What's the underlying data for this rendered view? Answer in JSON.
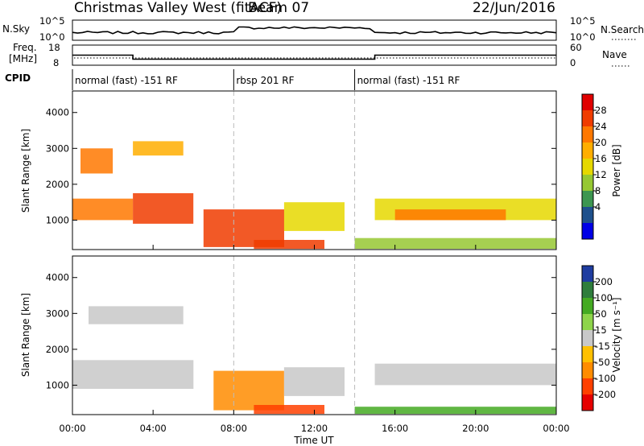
{
  "header": {
    "title": "Christmas Valley West (fitACF)",
    "beam": "Beam 07",
    "date": "22/Jun/2016"
  },
  "noise_panel": {
    "left_label": "N.Sky",
    "right_label": "N.Search",
    "left_ticks": [
      "10^5",
      "10^0"
    ],
    "right_ticks": [
      "10^5",
      "10^0"
    ]
  },
  "freq_panel": {
    "left_label_1": "Freq.",
    "left_label_2": "[MHz]",
    "right_label": "Nave",
    "left_ticks": [
      "18",
      "8"
    ],
    "right_ticks": [
      "60",
      "0"
    ]
  },
  "cpid": {
    "label": "CPID",
    "segments": [
      {
        "text": "normal (fast) -151 RF",
        "start_hour": 0,
        "end_hour": 8.0
      },
      {
        "text": "rbsp 201 RF",
        "start_hour": 8.0,
        "end_hour": 14.0
      },
      {
        "text": "normal (fast) -151 RF",
        "start_hour": 14.0,
        "end_hour": 24.0
      }
    ]
  },
  "axes": {
    "ylabel": "Slant Range [km]",
    "xlabel": "Time UT",
    "y_ticks": [
      "1000",
      "2000",
      "3000",
      "4000"
    ],
    "x_ticks": [
      "00:00",
      "04:00",
      "08:00",
      "12:00",
      "16:00",
      "20:00",
      "00:00"
    ]
  },
  "power_bar": {
    "label": "Power [dB]",
    "ticks": [
      "28",
      "24",
      "20",
      "16",
      "12",
      "8",
      "4"
    ],
    "colors": [
      "#e00000",
      "#f03c00",
      "#ff7800",
      "#ffae00",
      "#e6d800",
      "#96c832",
      "#3c9650",
      "#1e508c",
      "#0000e6"
    ]
  },
  "velocity_bar": {
    "label": "Velocity [m s⁻¹]",
    "ticks": [
      "200",
      "100",
      "50",
      "15",
      "-15",
      "-50",
      "-100",
      "-200"
    ],
    "colors": [
      "#1e3ca0",
      "#2e7d3c",
      "#44aa22",
      "#8ed44a",
      "#c8c8c8",
      "#ffc000",
      "#ff8c00",
      "#ff4000",
      "#e60000"
    ]
  },
  "chart_data": {
    "type": "heatmap",
    "title": "Christmas Valley West (fitACF)",
    "xlabel": "Time UT",
    "ylabel": "Slant Range [km]",
    "xlim_hours": [
      0,
      24
    ],
    "ylim_km": [
      180,
      4600
    ],
    "panels": [
      {
        "name": "Power [dB]",
        "scale": [
          0,
          30
        ],
        "regions": [
          {
            "t0": 0.0,
            "t1": 3.0,
            "r0": 1000,
            "r1": 1600,
            "power": 22
          },
          {
            "t0": 3.0,
            "t1": 6.0,
            "r0": 900,
            "r1": 1750,
            "power": 28
          },
          {
            "t0": 0.4,
            "t1": 2.0,
            "r0": 2300,
            "r1": 3000,
            "power": 24
          },
          {
            "t0": 3.0,
            "t1": 5.5,
            "r0": 2800,
            "r1": 3200,
            "power": 20
          },
          {
            "t0": 6.5,
            "t1": 10.5,
            "r0": 250,
            "r1": 1300,
            "power": 26
          },
          {
            "t0": 9.0,
            "t1": 12.5,
            "r0": 200,
            "r1": 450,
            "power": 27
          },
          {
            "t0": 10.5,
            "t1": 13.5,
            "r0": 700,
            "r1": 1500,
            "power": 14
          },
          {
            "t0": 15.0,
            "t1": 24.0,
            "r0": 1000,
            "r1": 1600,
            "power": 16
          },
          {
            "t0": 16.0,
            "t1": 21.5,
            "r0": 1000,
            "r1": 1300,
            "power": 22
          },
          {
            "t0": 14.0,
            "t1": 24.0,
            "r0": 200,
            "r1": 500,
            "power": 10
          }
        ]
      },
      {
        "name": "Velocity [m s-1]",
        "scale": [
          -200,
          200
        ],
        "regions": [
          {
            "t0": 0.0,
            "t1": 6.0,
            "r0": 900,
            "r1": 1700,
            "velocity": 0
          },
          {
            "t0": 0.8,
            "t1": 5.5,
            "r0": 2700,
            "r1": 3200,
            "velocity": 0
          },
          {
            "t0": 7.0,
            "t1": 10.5,
            "r0": 300,
            "r1": 1400,
            "velocity": -80
          },
          {
            "t0": 9.0,
            "t1": 12.5,
            "r0": 200,
            "r1": 450,
            "velocity": -120
          },
          {
            "t0": 10.5,
            "t1": 13.5,
            "r0": 700,
            "r1": 1500,
            "velocity": 0
          },
          {
            "t0": 15.0,
            "t1": 24.0,
            "r0": 1000,
            "r1": 1600,
            "velocity": 0
          },
          {
            "t0": 14.0,
            "t1": 24.0,
            "r0": 200,
            "r1": 400,
            "velocity": 40
          }
        ]
      }
    ],
    "freq_mhz": [
      {
        "t0": 0.0,
        "t1": 3.0,
        "value": 13
      },
      {
        "t0": 3.0,
        "t1": 15.0,
        "value": 11
      },
      {
        "t0": 15.0,
        "t1": 24.0,
        "value": 13
      }
    ]
  }
}
